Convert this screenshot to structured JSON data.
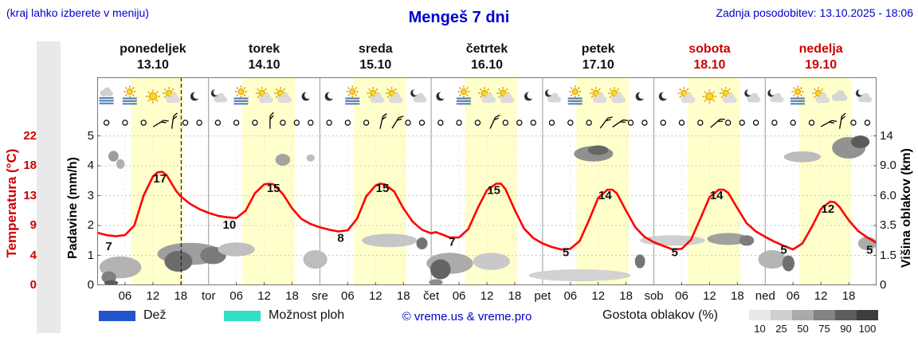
{
  "header": {
    "hint": "(kraj lahko izberete v meniju)",
    "title": "Mengeš 7 dni",
    "updated": "Zadnja posodobitev: 13.10.2025 - 18:06"
  },
  "days": [
    {
      "name": "ponedeljek",
      "date": "13.10",
      "weekend": false
    },
    {
      "name": "torek",
      "date": "14.10",
      "weekend": false
    },
    {
      "name": "sreda",
      "date": "15.10",
      "weekend": false
    },
    {
      "name": "četrtek",
      "date": "16.10",
      "weekend": false
    },
    {
      "name": "petek",
      "date": "17.10",
      "weekend": false
    },
    {
      "name": "sobota",
      "date": "18.10",
      "weekend": true
    },
    {
      "name": "nedelja",
      "date": "19.10",
      "weekend": true
    }
  ],
  "axes": {
    "temp_label": "Temperatura (°C)",
    "temp_ticks": [
      "22",
      "18",
      "13",
      "9",
      "4",
      "0"
    ],
    "precip_label": "Padavine (mm/h)",
    "precip_ticks": [
      "5",
      "4",
      "3",
      "2",
      "1",
      "0"
    ],
    "cloud_label": "Višina oblakov (km)",
    "cloud_ticks": [
      "14",
      "9.0",
      "6.0",
      "3.5",
      "1.5",
      "0"
    ]
  },
  "x_day_abbrevs": [
    "tor",
    "sre",
    "čet",
    "pet",
    "sob",
    "ned"
  ],
  "x_hour_labels": [
    "06",
    "12",
    "18"
  ],
  "legend": {
    "rain_label": "Dež",
    "shower_label": "Možnost ploh",
    "copyright": "© vreme.us & vreme.pro",
    "cloud_density_label": "Gostota oblakov (%)",
    "cloud_scale": [
      {
        "label": "10",
        "color": "#e8e8e8"
      },
      {
        "label": "25",
        "color": "#cfcfcf"
      },
      {
        "label": "50",
        "color": "#aaaaaa"
      },
      {
        "label": "75",
        "color": "#828282"
      },
      {
        "label": "90",
        "color": "#5c5c5c"
      },
      {
        "label": "100",
        "color": "#3d3d3d"
      }
    ]
  },
  "colors": {
    "accent_blue": "#0000cc",
    "weekend_red": "#cc0000",
    "temp_curve": "#ff0000",
    "day_band": "#ffffcc",
    "rain_blue": "#2255cc",
    "shower_cyan": "#30e0c8"
  },
  "chart_data": {
    "type": "line",
    "title": "Mengeš 7 dni",
    "x_unit": "hours_from_monday_00:00",
    "x_range": [
      0,
      168
    ],
    "temp_axis": {
      "label": "Temperatura (°C)",
      "ticks": [
        0,
        4,
        9,
        13,
        18,
        22
      ]
    },
    "precip_axis": {
      "label": "Padavine (mm/h)",
      "ticks": [
        0,
        1,
        2,
        3,
        4,
        5
      ]
    },
    "cloud_axis": {
      "label": "Višina oblakov (km)",
      "ticks_km": [
        0,
        1.5,
        3.5,
        6,
        9,
        14
      ]
    },
    "day_bands": {
      "start_hour": 7.3,
      "end_hour": 18.6
    },
    "now_hour": 18.1,
    "temperature": [
      [
        0,
        7.8
      ],
      [
        2,
        7.4
      ],
      [
        4,
        7.2
      ],
      [
        6,
        7.4
      ],
      [
        8,
        9.0
      ],
      [
        10,
        13.0
      ],
      [
        12,
        16.2
      ],
      [
        13,
        16.9
      ],
      [
        14,
        17.0
      ],
      [
        15,
        16.4
      ],
      [
        16,
        15.1
      ],
      [
        17,
        13.8
      ],
      [
        18,
        12.9
      ],
      [
        20,
        11.9
      ],
      [
        22,
        11.2
      ],
      [
        24,
        10.7
      ],
      [
        26,
        10.3
      ],
      [
        28,
        10.1
      ],
      [
        30,
        10.0
      ],
      [
        32,
        11.0
      ],
      [
        34,
        13.4
      ],
      [
        36,
        14.9
      ],
      [
        37,
        15.0
      ],
      [
        38,
        14.9
      ],
      [
        40,
        13.3
      ],
      [
        42,
        11.3
      ],
      [
        44,
        9.9
      ],
      [
        46,
        9.2
      ],
      [
        48,
        8.7
      ],
      [
        50,
        8.3
      ],
      [
        52,
        8.0
      ],
      [
        54,
        8.2
      ],
      [
        56,
        9.9
      ],
      [
        58,
        12.9
      ],
      [
        60,
        14.7
      ],
      [
        61,
        15.0
      ],
      [
        62,
        14.9
      ],
      [
        64,
        13.7
      ],
      [
        66,
        11.3
      ],
      [
        68,
        9.5
      ],
      [
        70,
        8.3
      ],
      [
        72,
        7.7
      ],
      [
        73,
        7.9
      ],
      [
        74,
        7.6
      ],
      [
        76,
        7.0
      ],
      [
        78,
        7.0
      ],
      [
        80,
        8.4
      ],
      [
        82,
        11.3
      ],
      [
        84,
        13.9
      ],
      [
        86,
        15.0
      ],
      [
        87,
        15.0
      ],
      [
        88,
        14.1
      ],
      [
        90,
        11.1
      ],
      [
        92,
        8.5
      ],
      [
        94,
        6.9
      ],
      [
        96,
        6.0
      ],
      [
        98,
        5.4
      ],
      [
        100,
        5.0
      ],
      [
        102,
        5.1
      ],
      [
        104,
        6.4
      ],
      [
        106,
        9.7
      ],
      [
        108,
        12.7
      ],
      [
        110,
        14.0
      ],
      [
        111,
        14.0
      ],
      [
        112,
        13.4
      ],
      [
        114,
        11.0
      ],
      [
        116,
        8.7
      ],
      [
        118,
        7.1
      ],
      [
        120,
        6.2
      ],
      [
        122,
        5.6
      ],
      [
        124,
        5.0
      ],
      [
        126,
        5.1
      ],
      [
        128,
        6.6
      ],
      [
        130,
        9.9
      ],
      [
        132,
        12.8
      ],
      [
        134,
        14.0
      ],
      [
        135,
        14.0
      ],
      [
        136,
        13.5
      ],
      [
        138,
        11.3
      ],
      [
        140,
        9.3
      ],
      [
        142,
        8.0
      ],
      [
        144,
        7.1
      ],
      [
        146,
        6.3
      ],
      [
        148,
        5.6
      ],
      [
        150,
        5.0
      ],
      [
        152,
        6.0
      ],
      [
        154,
        8.7
      ],
      [
        156,
        11.2
      ],
      [
        158,
        12.2
      ],
      [
        159,
        12.1
      ],
      [
        160,
        11.5
      ],
      [
        162,
        9.7
      ],
      [
        164,
        8.1
      ],
      [
        166,
        7.0
      ],
      [
        168,
        6.1
      ]
    ],
    "temp_labels": [
      {
        "h": 2.5,
        "t": 4.9,
        "text": "7"
      },
      {
        "h": 13.5,
        "t": 15.2,
        "text": "17"
      },
      {
        "h": 28.5,
        "t": 8.5,
        "text": "10"
      },
      {
        "h": 38,
        "t": 13.6,
        "text": "15"
      },
      {
        "h": 52.5,
        "t": 6.3,
        "text": "8"
      },
      {
        "h": 61.5,
        "t": 13.6,
        "text": "15"
      },
      {
        "h": 76.5,
        "t": 5.6,
        "text": "7"
      },
      {
        "h": 85.5,
        "t": 13.3,
        "text": "15"
      },
      {
        "h": 101,
        "t": 3.9,
        "text": "5"
      },
      {
        "h": 109.5,
        "t": 12.5,
        "text": "14"
      },
      {
        "h": 124.5,
        "t": 3.9,
        "text": "5"
      },
      {
        "h": 133.5,
        "t": 12.5,
        "text": "14"
      },
      {
        "h": 148,
        "t": 4.3,
        "text": "5"
      },
      {
        "h": 157.5,
        "t": 10.7,
        "text": "12"
      },
      {
        "h": 166.5,
        "t": 4.3,
        "text": "5"
      }
    ],
    "clouds": [
      {
        "h": 5,
        "km": 0.9,
        "rw": 4.5,
        "rh": 0.55,
        "c": "#b3b3b3"
      },
      {
        "h": 2.5,
        "km": 0.4,
        "rw": 1.6,
        "rh": 0.3,
        "c": "#808080"
      },
      {
        "h": 3,
        "km": 0.12,
        "rw": 1.5,
        "rh": 0.14,
        "c": "#5a5a5a"
      },
      {
        "h": 3.5,
        "km": 10.6,
        "rw": 1.1,
        "rh": 0.9,
        "c": "#9c9c9c"
      },
      {
        "h": 5,
        "km": 9.3,
        "rw": 0.9,
        "rh": 0.7,
        "c": "#b0b0b0"
      },
      {
        "h": 20,
        "km": 1.6,
        "rw": 7,
        "rh": 0.65,
        "c": "#9e9e9e"
      },
      {
        "h": 17.5,
        "km": 1.2,
        "rw": 3,
        "rh": 0.55,
        "c": "#6b6b6b"
      },
      {
        "h": 25,
        "km": 1.5,
        "rw": 2.8,
        "rh": 0.5,
        "c": "#7a7a7a"
      },
      {
        "h": 30,
        "km": 1.9,
        "rw": 4,
        "rh": 0.45,
        "c": "#bfbfbf"
      },
      {
        "h": 40,
        "km": 10,
        "rw": 1.6,
        "rh": 1.0,
        "c": "#a3a3a3"
      },
      {
        "h": 46,
        "km": 10.3,
        "rw": 0.9,
        "rh": 0.6,
        "c": "#bdbdbd"
      },
      {
        "h": 47,
        "km": 1.3,
        "rw": 2.6,
        "rh": 0.5,
        "c": "#bdbdbd"
      },
      {
        "h": 63,
        "km": 2.5,
        "rw": 6,
        "rh": 0.45,
        "c": "#c6c6c6"
      },
      {
        "h": 70,
        "km": 2.3,
        "rw": 1.2,
        "rh": 0.4,
        "c": "#737373"
      },
      {
        "h": 76,
        "km": 1.1,
        "rw": 5,
        "rh": 0.55,
        "c": "#ababab"
      },
      {
        "h": 74,
        "km": 0.8,
        "rw": 2.2,
        "rh": 0.5,
        "c": "#646464"
      },
      {
        "h": 85,
        "km": 1.2,
        "rw": 4,
        "rh": 0.45,
        "c": "#c9c9c9"
      },
      {
        "h": 73,
        "km": 0.15,
        "rw": 1.5,
        "rh": 0.16,
        "c": "#8c8c8c"
      },
      {
        "h": 107,
        "km": 11,
        "rw": 4.2,
        "rh": 1.3,
        "c": "#8f8f8f"
      },
      {
        "h": 108,
        "km": 11.6,
        "rw": 2.2,
        "rh": 0.8,
        "c": "#666666"
      },
      {
        "h": 104,
        "km": 0.5,
        "rw": 11,
        "rh": 0.3,
        "c": "#d2d2d2"
      },
      {
        "h": 117,
        "km": 1.2,
        "rw": 1.1,
        "rh": 0.35,
        "c": "#757575"
      },
      {
        "h": 124,
        "km": 2.5,
        "rw": 7,
        "rh": 0.35,
        "c": "#cfcfcf"
      },
      {
        "h": 136,
        "km": 2.6,
        "rw": 4.5,
        "rh": 0.4,
        "c": "#a0a0a0"
      },
      {
        "h": 140,
        "km": 2.5,
        "rw": 1.6,
        "rh": 0.35,
        "c": "#7d7d7d"
      },
      {
        "h": 152,
        "km": 10.5,
        "rw": 4,
        "rh": 0.9,
        "c": "#bcbcbc"
      },
      {
        "h": 162,
        "km": 12,
        "rw": 3.6,
        "rh": 1.8,
        "c": "#929292"
      },
      {
        "h": 164.5,
        "km": 13,
        "rw": 2,
        "rh": 1.1,
        "c": "#5b5b5b"
      },
      {
        "h": 145.5,
        "km": 1.3,
        "rw": 3,
        "rh": 0.5,
        "c": "#b5b5b5"
      },
      {
        "h": 149,
        "km": 1.1,
        "rw": 1.3,
        "rh": 0.4,
        "c": "#707070"
      },
      {
        "h": 166,
        "km": 2.3,
        "rw": 2,
        "rh": 0.45,
        "c": "#ababab"
      }
    ],
    "icons": [
      {
        "h": 2,
        "type": "fog"
      },
      {
        "h": 7,
        "type": "fog-sun"
      },
      {
        "h": 12,
        "type": "sun"
      },
      {
        "h": 16,
        "type": "sun-cloud"
      },
      {
        "h": 21,
        "type": "moon"
      },
      {
        "h": 26,
        "type": "moon-cloud"
      },
      {
        "h": 31,
        "type": "fog-sun"
      },
      {
        "h": 36,
        "type": "sun-cloud"
      },
      {
        "h": 40,
        "type": "sun-cloud"
      },
      {
        "h": 45,
        "type": "moon"
      },
      {
        "h": 50,
        "type": "moon"
      },
      {
        "h": 55,
        "type": "fog-sun"
      },
      {
        "h": 60,
        "type": "sun-cloud"
      },
      {
        "h": 64,
        "type": "sun-cloud"
      },
      {
        "h": 69,
        "type": "moon-cloud"
      },
      {
        "h": 74,
        "type": "moon"
      },
      {
        "h": 79,
        "type": "fog-sun"
      },
      {
        "h": 84,
        "type": "sun-cloud"
      },
      {
        "h": 88,
        "type": "sun-cloud"
      },
      {
        "h": 93,
        "type": "moon"
      },
      {
        "h": 98,
        "type": "moon-cloud"
      },
      {
        "h": 103,
        "type": "fog-sun"
      },
      {
        "h": 108,
        "type": "sun-cloud"
      },
      {
        "h": 112,
        "type": "sun-cloud"
      },
      {
        "h": 117,
        "type": "moon"
      },
      {
        "h": 122,
        "type": "moon"
      },
      {
        "h": 127,
        "type": "sun-cloud"
      },
      {
        "h": 132,
        "type": "sun"
      },
      {
        "h": 136,
        "type": "sun-cloud"
      },
      {
        "h": 141,
        "type": "moon-cloud"
      },
      {
        "h": 146,
        "type": "moon-cloud"
      },
      {
        "h": 151,
        "type": "fog-sun"
      },
      {
        "h": 156,
        "type": "sun-cloud"
      },
      {
        "h": 160,
        "type": "cloud"
      },
      {
        "h": 165,
        "type": "moon-cloud"
      }
    ],
    "wind": [
      {
        "h": 2,
        "type": "calm"
      },
      {
        "h": 6,
        "type": "calm"
      },
      {
        "h": 10,
        "type": "calm"
      },
      {
        "h": 13,
        "type": "barb"
      },
      {
        "h": 16,
        "type": "barb"
      },
      {
        "h": 19,
        "type": "calm"
      },
      {
        "h": 22,
        "type": "calm"
      },
      {
        "h": 26,
        "type": "calm"
      },
      {
        "h": 30,
        "type": "calm"
      },
      {
        "h": 34,
        "type": "calm"
      },
      {
        "h": 37,
        "type": "barb"
      },
      {
        "h": 40,
        "type": "calm"
      },
      {
        "h": 43,
        "type": "calm"
      },
      {
        "h": 46,
        "type": "calm"
      },
      {
        "h": 50,
        "type": "calm"
      },
      {
        "h": 54,
        "type": "calm"
      },
      {
        "h": 58,
        "type": "calm"
      },
      {
        "h": 61,
        "type": "barb"
      },
      {
        "h": 64,
        "type": "barb"
      },
      {
        "h": 67,
        "type": "calm"
      },
      {
        "h": 70,
        "type": "calm"
      },
      {
        "h": 74,
        "type": "calm"
      },
      {
        "h": 78,
        "type": "calm"
      },
      {
        "h": 82,
        "type": "calm"
      },
      {
        "h": 85,
        "type": "barb"
      },
      {
        "h": 88,
        "type": "calm"
      },
      {
        "h": 91,
        "type": "calm"
      },
      {
        "h": 94,
        "type": "calm"
      },
      {
        "h": 98,
        "type": "calm"
      },
      {
        "h": 102,
        "type": "calm"
      },
      {
        "h": 106,
        "type": "calm"
      },
      {
        "h": 109,
        "type": "barb"
      },
      {
        "h": 112,
        "type": "barb"
      },
      {
        "h": 115,
        "type": "calm"
      },
      {
        "h": 118,
        "type": "calm"
      },
      {
        "h": 122,
        "type": "calm"
      },
      {
        "h": 126,
        "type": "calm"
      },
      {
        "h": 130,
        "type": "calm"
      },
      {
        "h": 133,
        "type": "barb"
      },
      {
        "h": 136,
        "type": "calm"
      },
      {
        "h": 139,
        "type": "calm"
      },
      {
        "h": 142,
        "type": "calm"
      },
      {
        "h": 146,
        "type": "calm"
      },
      {
        "h": 150,
        "type": "calm"
      },
      {
        "h": 154,
        "type": "calm"
      },
      {
        "h": 157,
        "type": "barb"
      },
      {
        "h": 160,
        "type": "barb"
      },
      {
        "h": 163,
        "type": "calm"
      },
      {
        "h": 166,
        "type": "calm"
      }
    ]
  }
}
